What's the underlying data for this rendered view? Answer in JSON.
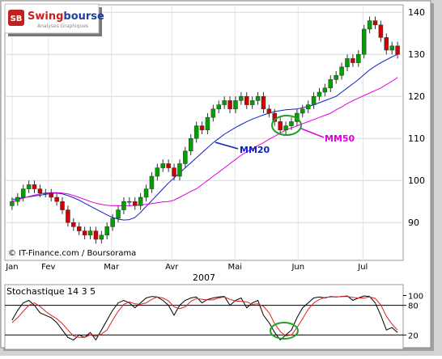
{
  "logo": {
    "badge": "SB",
    "name_a": "Swing",
    "name_b": "bourse",
    "tagline": "Analyses Graphiques"
  },
  "chart_data": [
    {
      "type": "candlestick",
      "source": "© IT-Finance.com / Boursorama",
      "xlabel": "2007",
      "xlim": [
        -1,
        70
      ],
      "ylim": [
        81,
        141
      ],
      "yticks": [
        90,
        100,
        110,
        120,
        130,
        140
      ],
      "xticks": [
        {
          "value": 0,
          "label": "Jan"
        },
        {
          "value": 6.5,
          "label": "Fev"
        },
        {
          "value": 17.8,
          "label": "Mar"
        },
        {
          "value": 28.6,
          "label": "Avr"
        },
        {
          "value": 39.9,
          "label": "Mai"
        },
        {
          "value": 51.2,
          "label": "Jun"
        },
        {
          "value": 62.8,
          "label": "Jul"
        }
      ],
      "grid": true,
      "up_color": "#00a000",
      "down_color": "#d00000",
      "open": [
        94,
        95,
        96,
        98,
        99,
        98,
        97,
        97,
        96,
        95,
        93,
        90,
        89,
        88,
        87,
        88,
        86,
        87,
        89,
        91,
        93,
        95,
        95,
        94,
        96,
        98,
        101,
        103,
        104,
        103,
        101,
        104,
        107,
        110,
        113,
        112,
        115,
        117,
        118,
        119,
        117,
        119,
        120,
        118,
        119,
        120,
        117,
        116,
        114,
        112,
        113,
        114,
        116,
        117,
        118,
        120,
        121,
        122,
        124,
        125,
        127,
        129,
        128,
        130,
        136,
        138,
        137,
        134,
        131,
        132
      ],
      "high": [
        96,
        97,
        99,
        100,
        100,
        99,
        98,
        98,
        97,
        96,
        94,
        91,
        90,
        89,
        89,
        89,
        88,
        90,
        92,
        94,
        96,
        96,
        96,
        97,
        99,
        102,
        104,
        105,
        105,
        104,
        105,
        108,
        111,
        114,
        114,
        116,
        118,
        119,
        120,
        120,
        120,
        121,
        121,
        120,
        121,
        121,
        118,
        117,
        115,
        114,
        115,
        117,
        118,
        119,
        121,
        122,
        123,
        125,
        126,
        128,
        130,
        130,
        131,
        137,
        139,
        139,
        138,
        135,
        133,
        133
      ],
      "low": [
        93,
        94,
        95,
        97,
        97,
        96,
        96,
        95,
        94,
        92,
        89,
        88,
        87,
        86,
        86,
        85,
        85,
        86,
        88,
        90,
        92,
        94,
        93,
        93,
        95,
        97,
        100,
        102,
        102,
        100,
        100,
        103,
        106,
        109,
        111,
        111,
        114,
        116,
        117,
        116,
        116,
        118,
        117,
        117,
        118,
        116,
        115,
        113,
        111,
        111,
        112,
        113,
        115,
        116,
        117,
        119,
        120,
        121,
        123,
        124,
        126,
        127,
        127,
        129,
        135,
        136,
        133,
        130,
        130,
        129
      ],
      "close": [
        95,
        96,
        98,
        99,
        98,
        97,
        97,
        96,
        95,
        93,
        90,
        89,
        88,
        87,
        88,
        86,
        87,
        89,
        91,
        93,
        95,
        95,
        94,
        96,
        98,
        101,
        103,
        104,
        103,
        101,
        104,
        107,
        110,
        113,
        112,
        115,
        117,
        118,
        119,
        117,
        119,
        120,
        118,
        119,
        120,
        117,
        116,
        114,
        112,
        113,
        114,
        116,
        117,
        118,
        120,
        121,
        122,
        124,
        125,
        127,
        129,
        128,
        130,
        136,
        138,
        137,
        134,
        131,
        132,
        130
      ],
      "series": [
        {
          "name": "MM20",
          "color": "#1020c0",
          "values": [
            95.5,
            95.7,
            95.9,
            96.1,
            96.3,
            96.5,
            96.7,
            96.9,
            97,
            96.8,
            96.4,
            95.9,
            95.3,
            94.6,
            93.9,
            93.2,
            92.5,
            91.8,
            91.2,
            90.8,
            90.6,
            90.7,
            91.2,
            92.4,
            93.8,
            95.2,
            96.6,
            98,
            99.4,
            100.6,
            101.8,
            103,
            104.2,
            105.4,
            106.6,
            107.8,
            109,
            110,
            111,
            111.8,
            112.6,
            113.3,
            114,
            114.6,
            115.1,
            115.6,
            116,
            116.4,
            116.6,
            116.8,
            116.9,
            117,
            117.3,
            117.6,
            118,
            118.5,
            119,
            119.5,
            120,
            121,
            122,
            123,
            124,
            125.2,
            126.3,
            127.2,
            128,
            128.7,
            129.4,
            130
          ]
        },
        {
          "name": "MM50",
          "color": "#e000e0",
          "values": [
            95,
            95.4,
            95.8,
            96.2,
            96.5,
            96.8,
            97,
            97.1,
            97.1,
            97,
            96.8,
            96.4,
            96,
            95.5,
            95,
            94.6,
            94.3,
            94.1,
            94,
            94,
            94,
            94,
            94.1,
            94.2,
            94.3,
            94.5,
            94.7,
            94.9,
            95,
            95.3,
            96,
            96.7,
            97.4,
            98,
            99,
            100,
            101,
            102,
            103,
            104,
            105,
            106,
            106.8,
            107.5,
            108.3,
            109,
            109.8,
            110.5,
            111.3,
            112,
            112.5,
            113,
            113.5,
            114,
            114.5,
            115,
            115.5,
            116,
            116.8,
            117.5,
            118.3,
            119,
            119.6,
            120.2,
            120.8,
            121.4,
            122,
            122.8,
            123.6,
            124.5
          ]
        }
      ]
    },
    {
      "type": "line",
      "title": "Stochastique 14 3 5",
      "xlim": [
        -1,
        70
      ],
      "ylim": [
        -9,
        122
      ],
      "yticks": [
        20,
        80,
        100
      ],
      "levels": [
        20,
        80
      ],
      "series": [
        {
          "color": "#000000",
          "values": [
            50,
            70,
            85,
            90,
            80,
            65,
            60,
            55,
            45,
            30,
            15,
            10,
            20,
            15,
            25,
            10,
            30,
            50,
            70,
            85,
            90,
            85,
            75,
            85,
            95,
            98,
            97,
            90,
            80,
            60,
            80,
            90,
            95,
            97,
            85,
            92,
            95,
            97,
            98,
            80,
            90,
            95,
            75,
            85,
            90,
            60,
            45,
            25,
            10,
            20,
            30,
            55,
            75,
            85,
            95,
            97,
            95,
            98,
            97,
            98,
            99,
            90,
            95,
            99,
            98,
            85,
            60,
            30,
            35,
            25
          ]
        },
        {
          "color": "#e02020",
          "values": [
            45,
            55,
            68,
            80,
            85,
            78,
            68,
            60,
            53,
            43,
            30,
            18,
            15,
            15,
            20,
            17,
            22,
            30,
            50,
            68,
            82,
            87,
            83,
            82,
            85,
            92,
            97,
            95,
            89,
            77,
            73,
            77,
            88,
            94,
            92,
            91,
            91,
            95,
            97,
            92,
            89,
            88,
            87,
            82,
            83,
            78,
            65,
            43,
            27,
            18,
            20,
            35,
            53,
            72,
            85,
            92,
            96,
            97,
            97,
            98,
            98,
            96,
            95,
            95,
            97,
            94,
            81,
            58,
            42,
            30
          ]
        }
      ]
    }
  ]
}
